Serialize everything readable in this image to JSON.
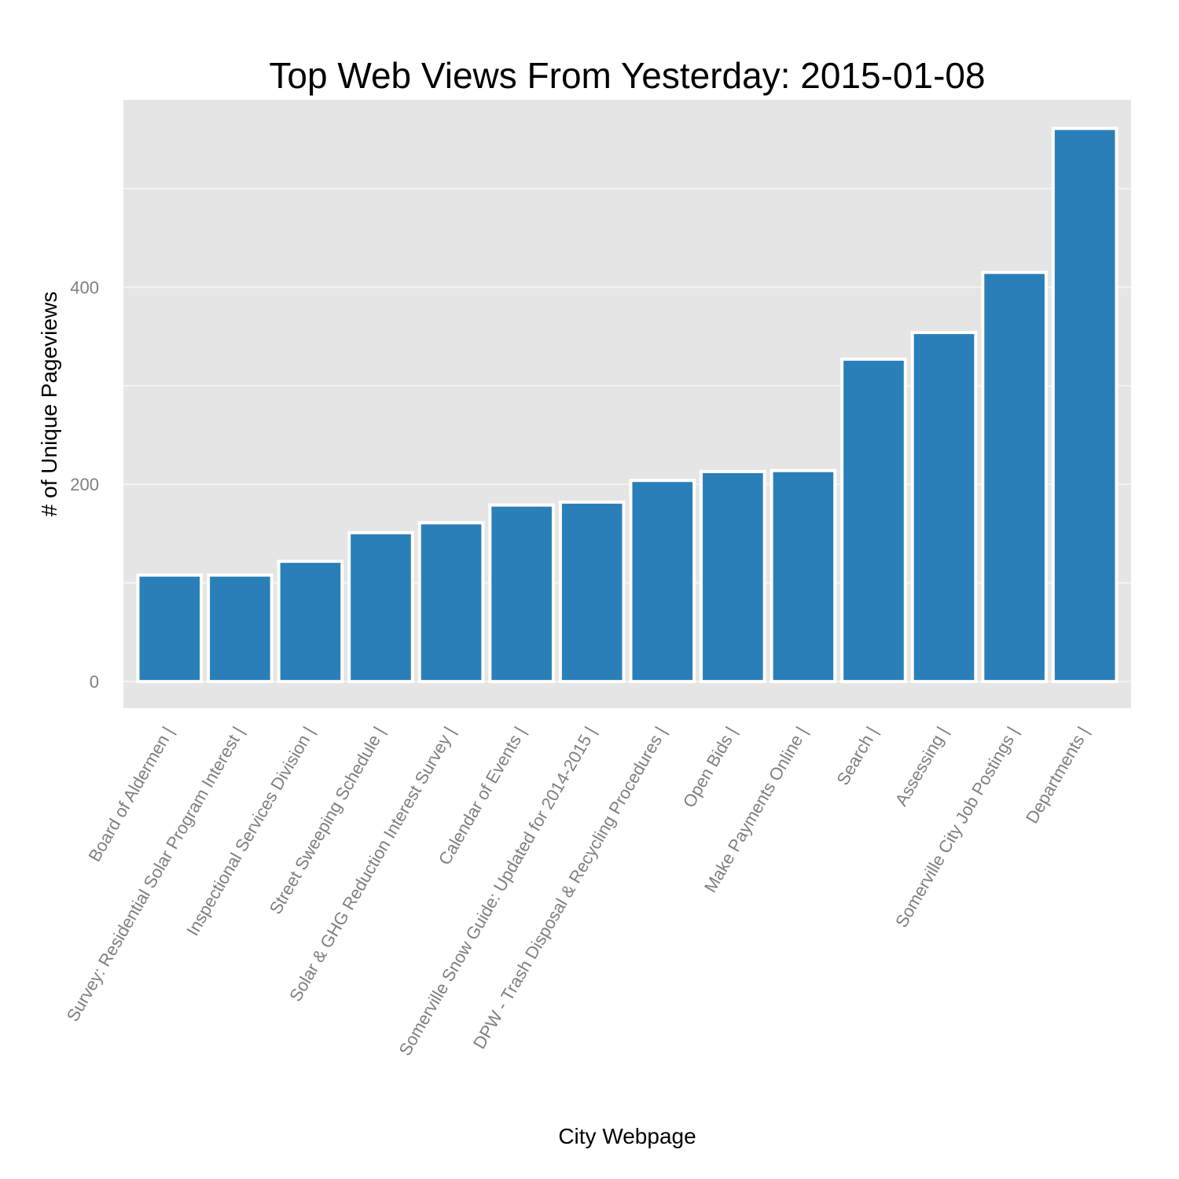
{
  "chart_data": {
    "type": "bar",
    "title": "Top Web Views From Yesterday: 2015-01-08",
    "xlabel": "City Webpage",
    "ylabel": "# of Unique Pageviews",
    "categories": [
      "Board of Aldermen |",
      "Survey: Residential Solar Program Interest |",
      "Inspectional Services Division |",
      "Street Sweeping Schedule |",
      "Solar & GHG Reduction Interest Survey |",
      "Calendar of Events |",
      "Somerville Snow Guide: Updated for 2014-2015 |",
      "DPW - Trash Disposal & Recycling Procedures |",
      "Open Bids |",
      "Make Payments Online |",
      "Search |",
      "Assessing |",
      "Somerville City Job Postings |",
      "Departments |"
    ],
    "values": [
      108,
      108,
      122,
      151,
      161,
      179,
      182,
      204,
      213,
      214,
      327,
      354,
      415,
      561
    ],
    "ylim": [
      -27,
      590
    ],
    "yticks": [
      0,
      200,
      400
    ],
    "minor_gridlines": [
      100,
      300,
      500
    ],
    "bar_color": "#2a7fb8",
    "panel_color": "#e5e5e5",
    "grid": true,
    "legend": "none"
  }
}
